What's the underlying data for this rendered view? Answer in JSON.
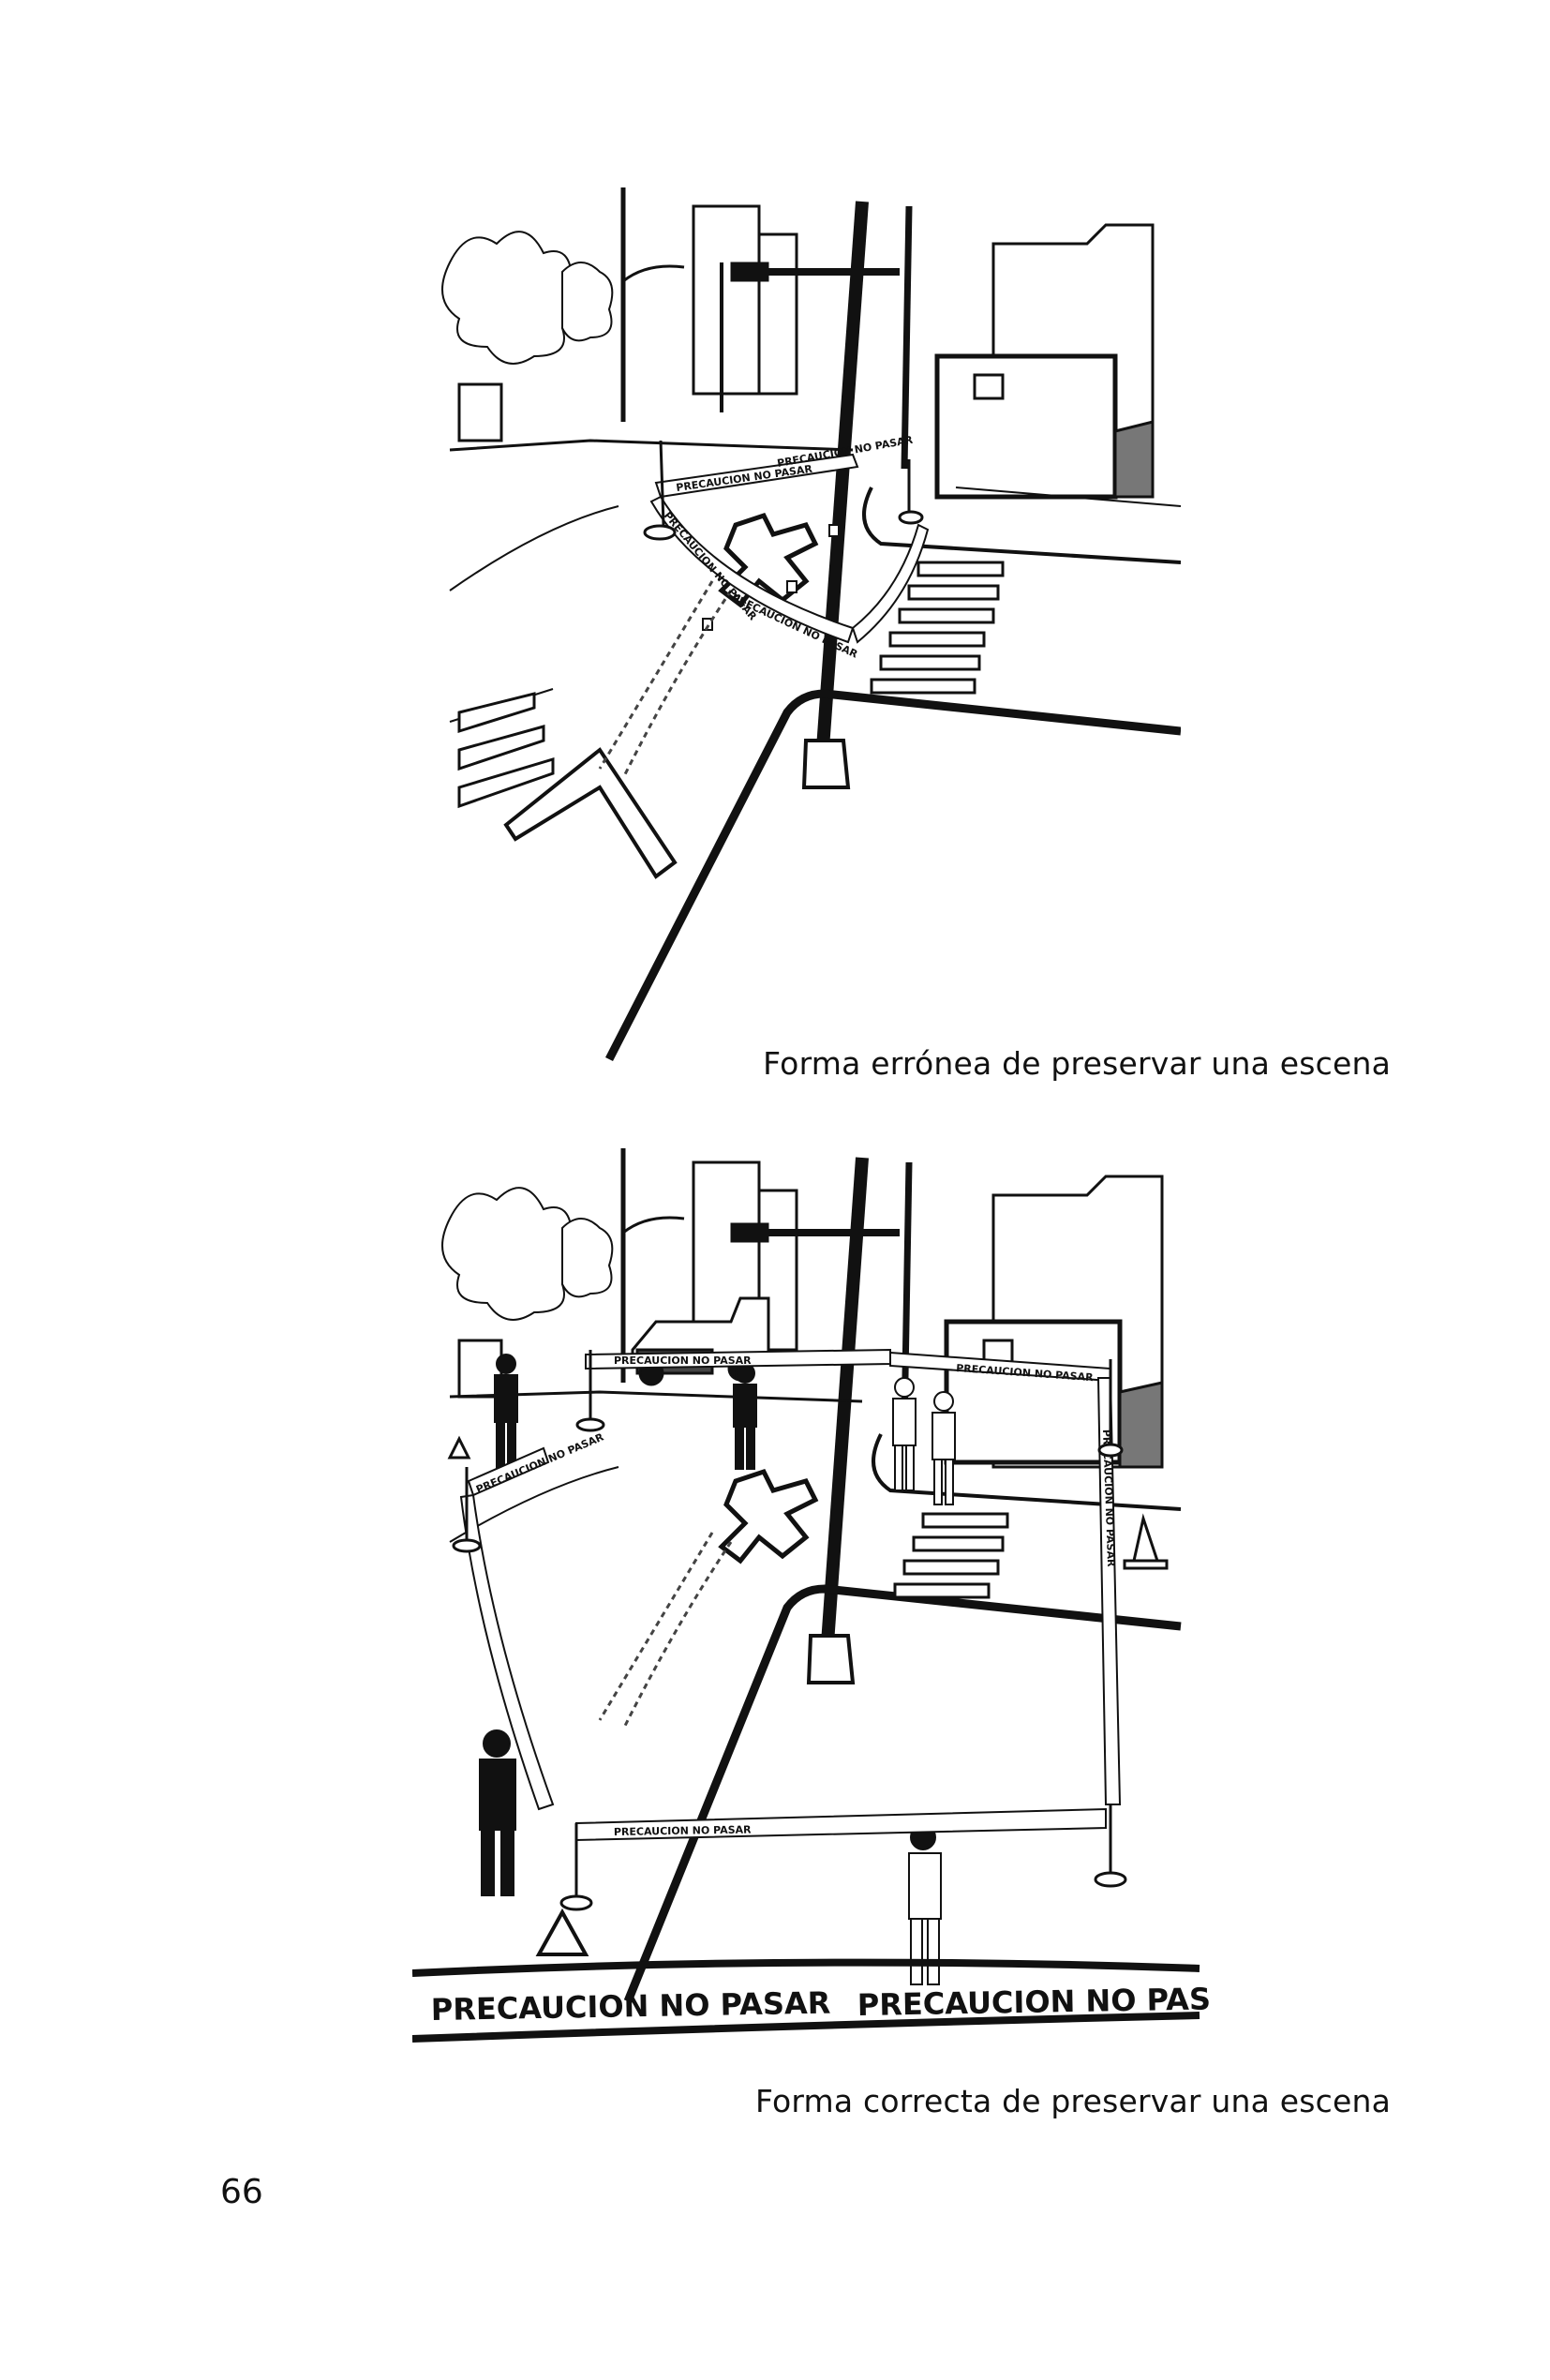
{
  "figures": [
    {
      "caption": "Forma errónea de preservar una escena",
      "tape_labels": [
        "PRECAUCION NO PASAR",
        "PRECAUCION NO PASAR",
        "PRECAUCION NO PASAR",
        "PRECAUCION NO PASAR"
      ]
    },
    {
      "caption": "Forma correcta de preservar una escena",
      "tape_labels": [
        "PRECAUCION NO PASAR",
        "PRECAUCION NO PASAR",
        "PRECAUCION NO PASAR",
        "PRECAUCION NO PASAR",
        "PRECAUCION NO PASAR"
      ],
      "foreground_tape_labels": [
        "PRECAUCION NO PASAR",
        "PRECAUCION NO PASAR"
      ]
    }
  ],
  "page_number": "66"
}
